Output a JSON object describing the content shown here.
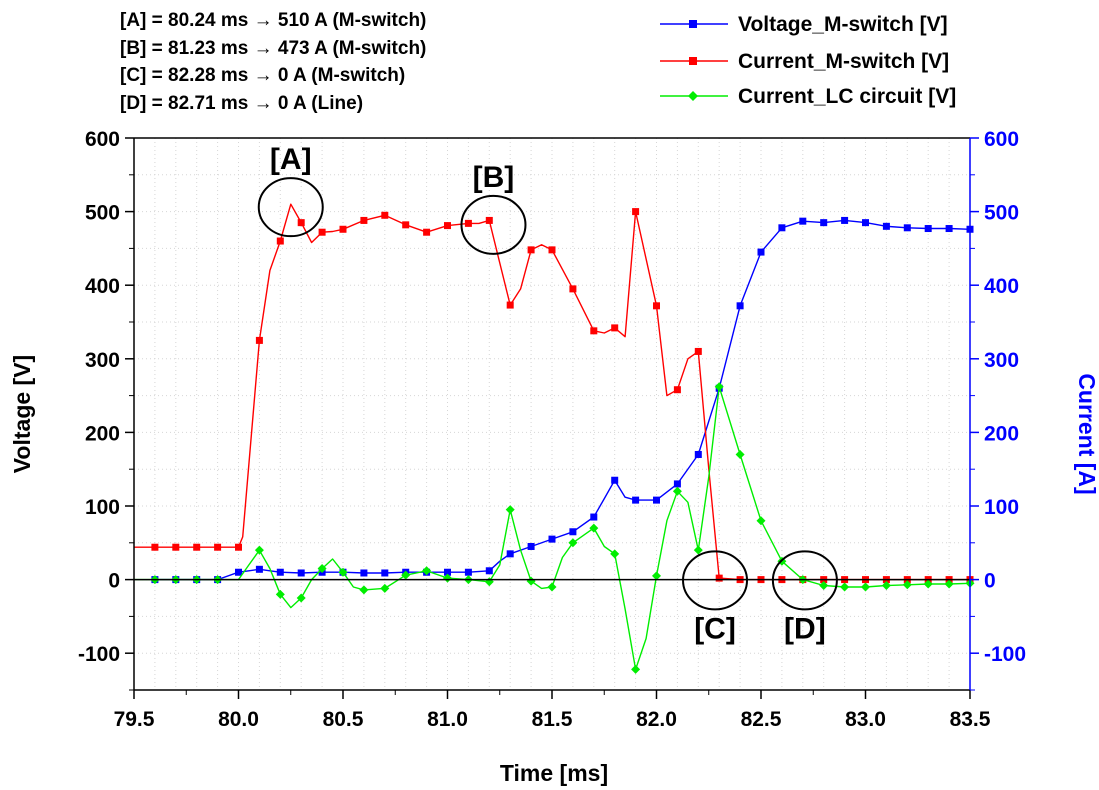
{
  "chart_data": {
    "type": "line",
    "xlabel": "Time [ms]",
    "ylabel_left": "Voltage [V]",
    "ylabel_right": "Current [A]",
    "xlim": [
      79.5,
      83.5
    ],
    "ylim_left": [
      -150,
      600
    ],
    "ylim_right": [
      -150,
      600
    ],
    "x_ticks": [
      "79.5",
      "80.0",
      "80.5",
      "81.0",
      "81.5",
      "82.0",
      "82.5",
      "83.0",
      "83.5"
    ],
    "y_ticks": [
      "-100",
      "0",
      "100",
      "200",
      "300",
      "400",
      "500",
      "600"
    ],
    "grid": true,
    "legend_position": "top-right",
    "zero_line": 0,
    "annotation_lines": [
      "[A] = 80.24 ms → 510 A (M-switch)",
      "[B] = 81.23 ms → 473 A (M-switch)",
      "[C] = 82.28 ms → 0 A (M-switch)",
      "[D] = 82.71 ms → 0 A (Line)"
    ],
    "callouts": [
      {
        "label": "[A]",
        "x": 80.25,
        "y": 506
      },
      {
        "label": "[B]",
        "x": 81.22,
        "y": 482
      },
      {
        "label": "[C]",
        "x": 82.28,
        "y": -1
      },
      {
        "label": "[D]",
        "x": 82.71,
        "y": -1
      }
    ],
    "series": [
      {
        "name": "Voltage_M-switch [V]",
        "color": "#0000ff",
        "marker": "square",
        "x": [
          79.6,
          79.7,
          79.8,
          79.9,
          80.0,
          80.05,
          80.1,
          80.15,
          80.2,
          80.3,
          80.4,
          80.5,
          80.6,
          80.7,
          80.8,
          80.9,
          81.0,
          81.1,
          81.2,
          81.25,
          81.3,
          81.4,
          81.5,
          81.6,
          81.7,
          81.75,
          81.8,
          81.85,
          81.9,
          82.0,
          82.1,
          82.2,
          82.3,
          82.4,
          82.5,
          82.6,
          82.7,
          82.8,
          82.9,
          83.0,
          83.1,
          83.2,
          83.3,
          83.4,
          83.5
        ],
        "y": [
          0,
          0,
          0,
          0,
          10,
          12,
          14,
          12,
          10,
          9,
          10,
          10,
          9,
          9,
          10,
          10,
          10,
          10,
          12,
          25,
          35,
          45,
          55,
          65,
          85,
          110,
          135,
          112,
          108,
          108,
          130,
          170,
          260,
          372,
          445,
          478,
          487,
          485,
          488,
          485,
          480,
          478,
          477,
          477,
          476
        ],
        "marker_x": [
          79.6,
          79.7,
          79.8,
          79.9,
          80.0,
          80.1,
          80.2,
          80.3,
          80.4,
          80.5,
          80.6,
          80.7,
          80.8,
          80.9,
          81.0,
          81.1,
          81.2,
          81.3,
          81.4,
          81.5,
          81.6,
          81.7,
          81.8,
          81.9,
          82.0,
          82.1,
          82.2,
          82.3,
          82.4,
          82.5,
          82.6,
          82.7,
          82.8,
          82.9,
          83.0,
          83.1,
          83.2,
          83.3,
          83.4,
          83.5
        ]
      },
      {
        "name": "Current_M-switch [V]",
        "color": "#ff0000",
        "marker": "square",
        "x": [
          79.5,
          79.6,
          79.7,
          79.8,
          79.9,
          80.0,
          80.02,
          80.1,
          80.15,
          80.2,
          80.25,
          80.3,
          80.35,
          80.4,
          80.45,
          80.5,
          80.6,
          80.7,
          80.8,
          80.9,
          81.0,
          81.1,
          81.15,
          81.2,
          81.25,
          81.3,
          81.35,
          81.4,
          81.45,
          81.5,
          81.6,
          81.7,
          81.75,
          81.8,
          81.85,
          81.9,
          82.0,
          82.05,
          82.1,
          82.15,
          82.2,
          82.25,
          82.3,
          82.4,
          82.5,
          82.6,
          82.7,
          82.8,
          82.9,
          83.0,
          83.1,
          83.2,
          83.3,
          83.4,
          83.5
        ],
        "y": [
          44,
          44,
          44,
          44,
          44,
          44,
          58,
          325,
          420,
          460,
          510,
          485,
          458,
          472,
          473,
          476,
          488,
          495,
          482,
          472,
          481,
          484,
          484,
          488,
          430,
          373,
          395,
          448,
          455,
          448,
          395,
          338,
          335,
          342,
          330,
          500,
          372,
          250,
          258,
          300,
          310,
          150,
          2,
          0,
          0,
          0,
          0,
          0,
          0,
          0,
          0,
          0,
          0,
          0,
          0
        ],
        "marker_x": [
          79.6,
          79.7,
          79.8,
          79.9,
          80.0,
          80.1,
          80.2,
          80.3,
          80.4,
          80.5,
          80.6,
          80.7,
          80.8,
          80.9,
          81.0,
          81.1,
          81.2,
          81.3,
          81.4,
          81.5,
          81.6,
          81.7,
          81.8,
          81.9,
          82.0,
          82.1,
          82.2,
          82.3,
          82.4,
          82.5,
          82.6,
          82.7,
          82.8,
          82.9,
          83.0,
          83.1,
          83.2,
          83.3,
          83.4,
          83.5
        ]
      },
      {
        "name": "Current_LC circuit [V]",
        "color": "#00ee00",
        "marker": "diamond",
        "x": [
          79.5,
          79.6,
          79.7,
          79.8,
          79.9,
          80.0,
          80.05,
          80.1,
          80.15,
          80.2,
          80.25,
          80.3,
          80.35,
          80.4,
          80.45,
          80.5,
          80.55,
          80.6,
          80.7,
          80.8,
          80.9,
          81.0,
          81.1,
          81.2,
          81.25,
          81.3,
          81.35,
          81.4,
          81.45,
          81.5,
          81.55,
          81.6,
          81.7,
          81.75,
          81.8,
          81.85,
          81.9,
          81.95,
          82.0,
          82.05,
          82.1,
          82.15,
          82.2,
          82.25,
          82.3,
          82.4,
          82.5,
          82.6,
          82.7,
          82.8,
          82.9,
          83.0,
          83.1,
          83.2,
          83.3,
          83.4,
          83.5
        ],
        "y": [
          0,
          0,
          0,
          0,
          0,
          0,
          20,
          40,
          15,
          -20,
          -38,
          -25,
          0,
          15,
          28,
          10,
          -10,
          -14,
          -12,
          6,
          12,
          2,
          0,
          -3,
          20,
          95,
          40,
          -2,
          -12,
          -10,
          30,
          50,
          70,
          45,
          35,
          -40,
          -122,
          -80,
          5,
          80,
          120,
          105,
          40,
          140,
          262,
          170,
          80,
          25,
          0,
          -8,
          -10,
          -10,
          -8,
          -7,
          -6,
          -6,
          -5
        ],
        "marker_x": [
          79.6,
          79.7,
          79.8,
          79.9,
          80.1,
          80.2,
          80.3,
          80.4,
          80.5,
          80.6,
          80.7,
          80.8,
          80.9,
          81.0,
          81.1,
          81.2,
          81.3,
          81.4,
          81.5,
          81.6,
          81.7,
          81.8,
          81.9,
          82.0,
          82.1,
          82.2,
          82.3,
          82.4,
          82.5,
          82.6,
          82.7,
          82.8,
          82.9,
          83.0,
          83.1,
          83.2,
          83.3,
          83.4,
          83.5
        ]
      }
    ]
  }
}
